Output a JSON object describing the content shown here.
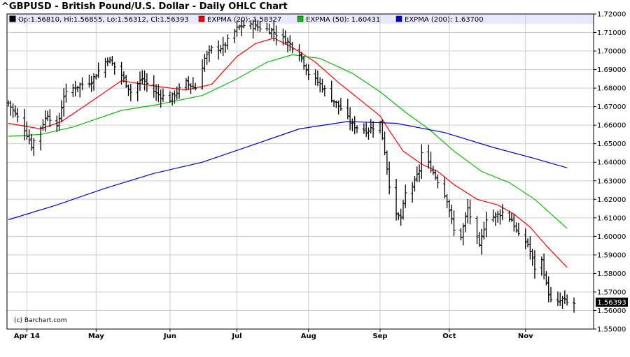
{
  "header": {
    "title": "^GBPUSD - British Pound/U.S. Dollar - Daily OHLC Chart"
  },
  "legend": {
    "ohlc": "Op:1.56810, Hi:1.56855, Lo:1.56312, Cl:1.56393",
    "ema20": "EXPMA (20): 1.58327",
    "ema50": "EXPMA (50): 1.60431",
    "ema200": "EXPMA (200): 1.63700"
  },
  "watermark": "(c) Barchart.com",
  "last_price_label": "1.56393",
  "colors": {
    "ohlc": "#000000",
    "ema20": "#ff0000",
    "ema50": "#00c000",
    "ema200": "#0000dd",
    "legend_bg": "#e6e9fb",
    "grid": "#cccccc"
  },
  "chart_data": {
    "type": "line",
    "title": "^GBPUSD - British Pound/U.S. Dollar - Daily OHLC Chart",
    "ylim": [
      1.55,
      1.72
    ],
    "grid": true,
    "y_axis_side": "right",
    "yticks": [
      "1.72000",
      "1.71000",
      "1.70000",
      "1.69000",
      "1.68000",
      "1.67000",
      "1.66000",
      "1.65000",
      "1.64000",
      "1.63000",
      "1.62000",
      "1.61000",
      "1.60000",
      "1.59000",
      "1.58000",
      "1.57000",
      "1.56000",
      "1.55000"
    ],
    "x_range": [
      "2014-03-24",
      "2014-11-24"
    ],
    "xticks": [
      {
        "label": "Apr 14",
        "date": "2014-04-01"
      },
      {
        "label": "May",
        "date": "2014-05-01"
      },
      {
        "label": "Jun",
        "date": "2014-06-02"
      },
      {
        "label": "Jul",
        "date": "2014-07-01"
      },
      {
        "label": "Aug",
        "date": "2014-08-01"
      },
      {
        "label": "Sep",
        "date": "2014-09-01"
      },
      {
        "label": "Oct",
        "date": "2014-10-01"
      },
      {
        "label": "Nov",
        "date": "2014-11-03"
      }
    ],
    "ohlc_close_anchors": [
      {
        "date": "2014-03-24",
        "close": 1.672
      },
      {
        "date": "2014-03-31",
        "close": 1.658
      },
      {
        "date": "2014-04-03",
        "close": 1.649
      },
      {
        "date": "2014-04-10",
        "close": 1.666
      },
      {
        "date": "2014-04-14",
        "close": 1.658
      },
      {
        "date": "2014-04-17",
        "close": 1.676
      },
      {
        "date": "2014-04-21",
        "close": 1.68
      },
      {
        "date": "2014-04-29",
        "close": 1.684
      },
      {
        "date": "2014-05-06",
        "close": 1.696
      },
      {
        "date": "2014-05-12",
        "close": 1.687
      },
      {
        "date": "2014-05-16",
        "close": 1.678
      },
      {
        "date": "2014-05-21",
        "close": 1.685
      },
      {
        "date": "2014-05-27",
        "close": 1.677
      },
      {
        "date": "2014-06-02",
        "close": 1.674
      },
      {
        "date": "2014-06-05",
        "close": 1.678
      },
      {
        "date": "2014-06-09",
        "close": 1.683
      },
      {
        "date": "2014-06-13",
        "close": 1.68
      },
      {
        "date": "2014-06-17",
        "close": 1.696
      },
      {
        "date": "2014-06-20",
        "close": 1.701
      },
      {
        "date": "2014-06-25",
        "close": 1.702
      },
      {
        "date": "2014-07-01",
        "close": 1.712
      },
      {
        "date": "2014-07-04",
        "close": 1.714
      },
      {
        "date": "2014-07-10",
        "close": 1.713
      },
      {
        "date": "2014-07-16",
        "close": 1.711
      },
      {
        "date": "2014-07-22",
        "close": 1.706
      },
      {
        "date": "2014-07-28",
        "close": 1.699
      },
      {
        "date": "2014-08-01",
        "close": 1.688
      },
      {
        "date": "2014-08-06",
        "close": 1.682
      },
      {
        "date": "2014-08-12",
        "close": 1.673
      },
      {
        "date": "2014-08-15",
        "close": 1.669
      },
      {
        "date": "2014-08-20",
        "close": 1.66
      },
      {
        "date": "2014-08-26",
        "close": 1.657
      },
      {
        "date": "2014-09-01",
        "close": 1.661
      },
      {
        "date": "2014-09-03",
        "close": 1.646
      },
      {
        "date": "2014-09-05",
        "close": 1.628
      },
      {
        "date": "2014-09-08",
        "close": 1.611
      },
      {
        "date": "2014-09-10",
        "close": 1.61
      },
      {
        "date": "2014-09-12",
        "close": 1.623
      },
      {
        "date": "2014-09-16",
        "close": 1.629
      },
      {
        "date": "2014-09-18",
        "close": 1.636
      },
      {
        "date": "2014-09-19",
        "close": 1.645
      },
      {
        "date": "2014-09-23",
        "close": 1.637
      },
      {
        "date": "2014-09-26",
        "close": 1.63
      },
      {
        "date": "2014-09-30",
        "close": 1.62
      },
      {
        "date": "2014-10-03",
        "close": 1.603
      },
      {
        "date": "2014-10-06",
        "close": 1.6
      },
      {
        "date": "2014-10-09",
        "close": 1.615
      },
      {
        "date": "2014-10-14",
        "close": 1.594
      },
      {
        "date": "2014-10-17",
        "close": 1.61
      },
      {
        "date": "2014-10-21",
        "close": 1.611
      },
      {
        "date": "2014-10-24",
        "close": 1.613
      },
      {
        "date": "2014-10-28",
        "close": 1.609
      },
      {
        "date": "2014-10-31",
        "close": 1.6
      },
      {
        "date": "2014-11-04",
        "close": 1.596
      },
      {
        "date": "2014-11-07",
        "close": 1.583
      },
      {
        "date": "2014-11-10",
        "close": 1.587
      },
      {
        "date": "2014-11-12",
        "close": 1.574
      },
      {
        "date": "2014-11-14",
        "close": 1.565
      },
      {
        "date": "2014-11-17",
        "close": 1.564
      },
      {
        "date": "2014-11-19",
        "close": 1.566
      },
      {
        "date": "2014-11-21",
        "close": 1.5639
      }
    ],
    "series": [
      {
        "name": "EXPMA (20)",
        "points": [
          {
            "date": "2014-03-24",
            "value": 1.661
          },
          {
            "date": "2014-04-07",
            "value": 1.658
          },
          {
            "date": "2014-04-16",
            "value": 1.662
          },
          {
            "date": "2014-04-28",
            "value": 1.672
          },
          {
            "date": "2014-05-12",
            "value": 1.684
          },
          {
            "date": "2014-05-27",
            "value": 1.681
          },
          {
            "date": "2014-06-09",
            "value": 1.679
          },
          {
            "date": "2014-06-20",
            "value": 1.682
          },
          {
            "date": "2014-07-01",
            "value": 1.697
          },
          {
            "date": "2014-07-09",
            "value": 1.704
          },
          {
            "date": "2014-07-17",
            "value": 1.707
          },
          {
            "date": "2014-07-25",
            "value": 1.702
          },
          {
            "date": "2014-08-04",
            "value": 1.694
          },
          {
            "date": "2014-08-14",
            "value": 1.683
          },
          {
            "date": "2014-08-25",
            "value": 1.672
          },
          {
            "date": "2014-09-01",
            "value": 1.665
          },
          {
            "date": "2014-09-05",
            "value": 1.657
          },
          {
            "date": "2014-09-11",
            "value": 1.646
          },
          {
            "date": "2014-09-19",
            "value": 1.639
          },
          {
            "date": "2014-09-26",
            "value": 1.635
          },
          {
            "date": "2014-10-03",
            "value": 1.628
          },
          {
            "date": "2014-10-13",
            "value": 1.62
          },
          {
            "date": "2014-10-22",
            "value": 1.617
          },
          {
            "date": "2014-10-29",
            "value": 1.612
          },
          {
            "date": "2014-11-05",
            "value": 1.605
          },
          {
            "date": "2014-11-12",
            "value": 1.595
          },
          {
            "date": "2014-11-21",
            "value": 1.5833
          }
        ]
      },
      {
        "name": "EXPMA (50)",
        "points": [
          {
            "date": "2014-03-24",
            "value": 1.654
          },
          {
            "date": "2014-04-07",
            "value": 1.655
          },
          {
            "date": "2014-04-21",
            "value": 1.659
          },
          {
            "date": "2014-05-12",
            "value": 1.668
          },
          {
            "date": "2014-05-27",
            "value": 1.671
          },
          {
            "date": "2014-06-16",
            "value": 1.676
          },
          {
            "date": "2014-07-01",
            "value": 1.685
          },
          {
            "date": "2014-07-14",
            "value": 1.694
          },
          {
            "date": "2014-07-25",
            "value": 1.698
          },
          {
            "date": "2014-08-06",
            "value": 1.696
          },
          {
            "date": "2014-08-20",
            "value": 1.688
          },
          {
            "date": "2014-09-01",
            "value": 1.678
          },
          {
            "date": "2014-09-12",
            "value": 1.667
          },
          {
            "date": "2014-09-22",
            "value": 1.658
          },
          {
            "date": "2014-10-03",
            "value": 1.646
          },
          {
            "date": "2014-10-15",
            "value": 1.635
          },
          {
            "date": "2014-10-27",
            "value": 1.629
          },
          {
            "date": "2014-11-07",
            "value": 1.62
          },
          {
            "date": "2014-11-21",
            "value": 1.6043
          }
        ]
      },
      {
        "name": "EXPMA (200)",
        "points": [
          {
            "date": "2014-03-24",
            "value": 1.609
          },
          {
            "date": "2014-04-14",
            "value": 1.617
          },
          {
            "date": "2014-05-05",
            "value": 1.626
          },
          {
            "date": "2014-05-26",
            "value": 1.634
          },
          {
            "date": "2014-06-16",
            "value": 1.64
          },
          {
            "date": "2014-07-07",
            "value": 1.649
          },
          {
            "date": "2014-07-28",
            "value": 1.658
          },
          {
            "date": "2014-08-18",
            "value": 1.662
          },
          {
            "date": "2014-09-08",
            "value": 1.661
          },
          {
            "date": "2014-09-29",
            "value": 1.656
          },
          {
            "date": "2014-10-20",
            "value": 1.648
          },
          {
            "date": "2014-11-07",
            "value": 1.642
          },
          {
            "date": "2014-11-21",
            "value": 1.637
          }
        ]
      }
    ]
  }
}
